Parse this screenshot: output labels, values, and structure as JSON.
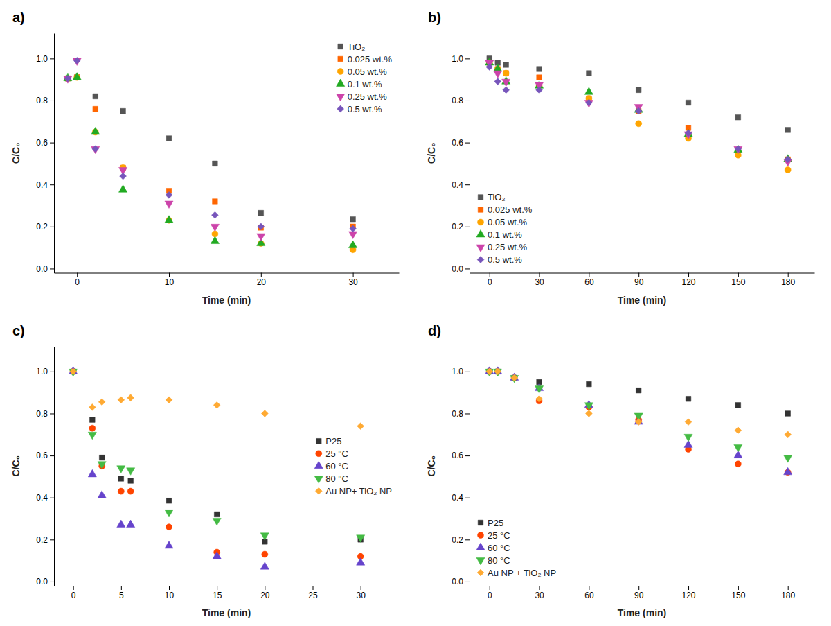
{
  "chart_data": [
    {
      "type": "scatter",
      "title": "a)",
      "xlabel": "Time (min)",
      "ylabel": "C/C₀",
      "xlim": [
        -2.5,
        35
      ],
      "ylim": [
        -0.02,
        1.12
      ],
      "xticks": [
        0,
        10,
        20,
        30
      ],
      "yticks": [
        {
          "value": 0.0,
          "label": "0.0"
        },
        0.2,
        0.4,
        0.6,
        0.8,
        {
          "value": 1.0,
          "label": "1.0"
        }
      ],
      "grid": false,
      "legend": "upper right",
      "x": [
        -1,
        0,
        2,
        5,
        10,
        15,
        20,
        30
      ],
      "series": [
        {
          "name": "TiO₂",
          "color": "#555555",
          "marker": "square",
          "values": [
            0.905,
            0.91,
            0.82,
            0.75,
            0.62,
            0.5,
            0.265,
            0.235
          ]
        },
        {
          "name": "0.025 wt.%",
          "color": "#FF6600",
          "marker": "square",
          "values": [
            0.905,
            0.91,
            0.76,
            0.48,
            0.37,
            0.32,
            0.195,
            0.2
          ]
        },
        {
          "name": "0.05 wt.%",
          "color": "#FFA500",
          "marker": "circle",
          "values": [
            0.905,
            0.91,
            0.65,
            0.48,
            0.23,
            0.165,
            0.12,
            0.09
          ]
        },
        {
          "name": "0.1 wt.%",
          "color": "#22AA22",
          "marker": "triangle-up",
          "values": [
            0.905,
            0.91,
            0.65,
            0.375,
            0.23,
            0.13,
            0.12,
            0.11
          ]
        },
        {
          "name": "0.25 wt.%",
          "color": "#CC44AA",
          "marker": "triangle-down",
          "values": [
            0.905,
            0.99,
            0.57,
            0.47,
            0.31,
            0.2,
            0.155,
            0.165
          ]
        },
        {
          "name": "0.5 wt.%",
          "color": "#7755BB",
          "marker": "diamond",
          "values": [
            0.905,
            0.99,
            0.57,
            0.44,
            0.35,
            0.255,
            0.2,
            0.19
          ]
        }
      ]
    },
    {
      "type": "scatter",
      "title": "b)",
      "xlabel": "Time (min)",
      "ylabel": "C/C₀",
      "xlim": [
        -12,
        196
      ],
      "ylim": [
        -0.02,
        1.12
      ],
      "xticks": [
        0,
        30,
        60,
        90,
        120,
        150,
        180
      ],
      "yticks": [
        {
          "value": 0.0,
          "label": "0.0"
        },
        0.2,
        0.4,
        0.6,
        0.8,
        {
          "value": 1.0,
          "label": "1.0"
        }
      ],
      "grid": false,
      "legend": "lower left",
      "x": [
        0,
        5,
        10,
        30,
        60,
        90,
        120,
        150,
        180
      ],
      "series": [
        {
          "name": "TiO₂",
          "color": "#555555",
          "marker": "square",
          "values": [
            1.0,
            0.98,
            0.97,
            0.95,
            0.93,
            0.85,
            0.79,
            0.72,
            0.66
          ]
        },
        {
          "name": "0.025 wt.%",
          "color": "#FF6600",
          "marker": "square",
          "values": [
            0.98,
            0.95,
            0.93,
            0.91,
            0.81,
            0.75,
            0.67,
            0.565,
            0.52
          ]
        },
        {
          "name": "0.05 wt.%",
          "color": "#FFA500",
          "marker": "circle",
          "values": [
            0.98,
            0.95,
            0.93,
            0.87,
            0.81,
            0.69,
            0.62,
            0.54,
            0.47
          ]
        },
        {
          "name": "0.1 wt.%",
          "color": "#22AA22",
          "marker": "triangle-up",
          "values": [
            0.98,
            0.95,
            0.89,
            0.87,
            0.84,
            0.755,
            0.64,
            0.565,
            0.52
          ]
        },
        {
          "name": "0.25 wt.%",
          "color": "#CC44AA",
          "marker": "triangle-down",
          "values": [
            0.98,
            0.93,
            0.89,
            0.875,
            0.79,
            0.77,
            0.64,
            0.57,
            0.51
          ]
        },
        {
          "name": "0.5 wt.%",
          "color": "#7755BB",
          "marker": "diamond",
          "values": [
            0.96,
            0.89,
            0.85,
            0.85,
            0.79,
            0.75,
            0.645,
            0.57,
            0.52
          ]
        }
      ]
    },
    {
      "type": "scatter",
      "title": "c)",
      "xlabel": "Time (min)",
      "ylabel": "C/C₀",
      "xlim": [
        -2,
        34
      ],
      "ylim": [
        -0.02,
        1.12
      ],
      "xticks": [
        0,
        5,
        10,
        15,
        20,
        25,
        30
      ],
      "yticks": [
        {
          "value": 0.0,
          "label": "0.0"
        },
        0.2,
        0.4,
        0.6,
        0.8,
        {
          "value": 1.0,
          "label": "1.0"
        }
      ],
      "grid": false,
      "legend": "center right",
      "x": [
        0,
        2,
        3,
        5,
        6,
        10,
        15,
        20,
        30
      ],
      "series": [
        {
          "name": "P25",
          "color": "#333333",
          "marker": "square",
          "values": [
            1.0,
            0.77,
            0.59,
            0.49,
            0.48,
            0.385,
            0.32,
            0.19,
            0.2
          ]
        },
        {
          "name": "25 °C",
          "color": "#FF4400",
          "marker": "circle",
          "values": [
            1.0,
            0.73,
            0.55,
            0.43,
            0.43,
            0.26,
            0.14,
            0.13,
            0.12
          ]
        },
        {
          "name": "60 °C",
          "color": "#6644CC",
          "marker": "triangle-up",
          "values": [
            1.0,
            0.51,
            0.41,
            0.27,
            0.27,
            0.17,
            0.12,
            0.07,
            0.09
          ]
        },
        {
          "name": "80 °C",
          "color": "#44BB44",
          "marker": "triangle-down",
          "values": [
            1.0,
            0.7,
            0.56,
            0.54,
            0.53,
            0.33,
            0.29,
            0.22,
            0.21
          ]
        },
        {
          "name": "Au NP+ TiO₂ NP",
          "color": "#FFAA33",
          "marker": "diamond",
          "values": [
            1.0,
            0.83,
            0.855,
            0.865,
            0.875,
            0.865,
            0.84,
            0.8,
            0.74
          ]
        }
      ]
    },
    {
      "type": "scatter",
      "title": "d)",
      "xlabel": "Time (min)",
      "ylabel": "C/C₀",
      "xlim": [
        -12,
        196
      ],
      "ylim": [
        -0.02,
        1.12
      ],
      "xticks": [
        0,
        30,
        60,
        90,
        120,
        150,
        180
      ],
      "yticks": [
        {
          "value": 0.0,
          "label": "0.0"
        },
        0.2,
        0.4,
        0.6,
        0.8,
        {
          "value": 1.0,
          "label": "1.0"
        }
      ],
      "grid": false,
      "legend": "lower left",
      "x": [
        0,
        5,
        15,
        30,
        60,
        90,
        120,
        150,
        180
      ],
      "series": [
        {
          "name": "P25",
          "color": "#333333",
          "marker": "square",
          "values": [
            1.0,
            1.0,
            0.97,
            0.95,
            0.94,
            0.91,
            0.87,
            0.84,
            0.8
          ]
        },
        {
          "name": "25 °C",
          "color": "#FF4400",
          "marker": "circle",
          "values": [
            1.0,
            1.0,
            0.97,
            0.86,
            0.83,
            0.77,
            0.63,
            0.56,
            0.52
          ]
        },
        {
          "name": "60 °C",
          "color": "#6644CC",
          "marker": "triangle-up",
          "values": [
            1.0,
            1.0,
            0.97,
            0.92,
            0.84,
            0.76,
            0.65,
            0.6,
            0.52
          ]
        },
        {
          "name": "80 °C",
          "color": "#44BB44",
          "marker": "triangle-down",
          "values": [
            1.0,
            1.0,
            0.97,
            0.92,
            0.84,
            0.79,
            0.69,
            0.64,
            0.59
          ]
        },
        {
          "name": "Au NP + TiO₂ NP",
          "color": "#FFAA33",
          "marker": "diamond",
          "values": [
            1.0,
            1.0,
            0.97,
            0.87,
            0.8,
            0.76,
            0.76,
            0.72,
            0.7
          ]
        }
      ]
    }
  ]
}
